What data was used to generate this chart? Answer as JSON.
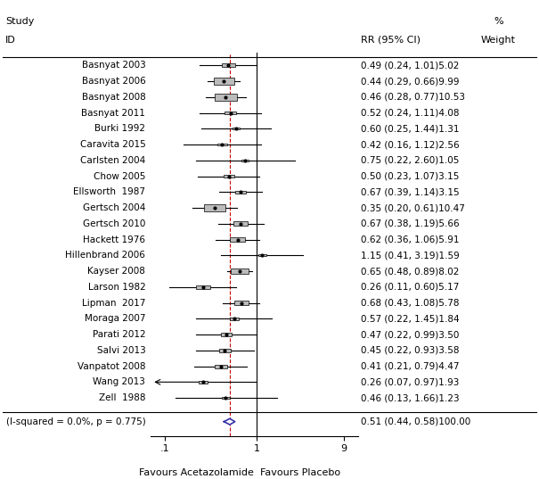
{
  "studies": [
    {
      "id": "Basnyat 2003",
      "rr": 0.49,
      "ci_lo": 0.24,
      "ci_hi": 1.01,
      "weight": 5.02
    },
    {
      "id": "Basnyat 2006",
      "rr": 0.44,
      "ci_lo": 0.29,
      "ci_hi": 0.66,
      "weight": 9.99
    },
    {
      "id": "Basnyat 2008",
      "rr": 0.46,
      "ci_lo": 0.28,
      "ci_hi": 0.77,
      "weight": 10.53
    },
    {
      "id": "Basnyat 2011",
      "rr": 0.52,
      "ci_lo": 0.24,
      "ci_hi": 1.11,
      "weight": 4.08
    },
    {
      "id": "Burki 1992",
      "rr": 0.6,
      "ci_lo": 0.25,
      "ci_hi": 1.44,
      "weight": 1.31
    },
    {
      "id": "Caravita 2015",
      "rr": 0.42,
      "ci_lo": 0.16,
      "ci_hi": 1.12,
      "weight": 2.56
    },
    {
      "id": "Carlsten 2004",
      "rr": 0.75,
      "ci_lo": 0.22,
      "ci_hi": 2.6,
      "weight": 1.05
    },
    {
      "id": "Chow 2005",
      "rr": 0.5,
      "ci_lo": 0.23,
      "ci_hi": 1.07,
      "weight": 3.15
    },
    {
      "id": "Ellsworth  1987",
      "rr": 0.67,
      "ci_lo": 0.39,
      "ci_hi": 1.14,
      "weight": 3.15
    },
    {
      "id": "Gertsch 2004",
      "rr": 0.35,
      "ci_lo": 0.2,
      "ci_hi": 0.61,
      "weight": 10.47
    },
    {
      "id": "Gertsch 2010",
      "rr": 0.67,
      "ci_lo": 0.38,
      "ci_hi": 1.19,
      "weight": 5.66
    },
    {
      "id": "Hackett 1976",
      "rr": 0.62,
      "ci_lo": 0.36,
      "ci_hi": 1.06,
      "weight": 5.91
    },
    {
      "id": "Hillenbrand 2006",
      "rr": 1.15,
      "ci_lo": 0.41,
      "ci_hi": 3.19,
      "weight": 1.59
    },
    {
      "id": "Kayser 2008",
      "rr": 0.65,
      "ci_lo": 0.48,
      "ci_hi": 0.89,
      "weight": 8.02
    },
    {
      "id": "Larson 1982",
      "rr": 0.26,
      "ci_lo": 0.11,
      "ci_hi": 0.6,
      "weight": 5.17
    },
    {
      "id": "Lipman  2017",
      "rr": 0.68,
      "ci_lo": 0.43,
      "ci_hi": 1.08,
      "weight": 5.78
    },
    {
      "id": "Moraga 2007",
      "rr": 0.57,
      "ci_lo": 0.22,
      "ci_hi": 1.45,
      "weight": 1.84
    },
    {
      "id": "Parati 2012",
      "rr": 0.47,
      "ci_lo": 0.22,
      "ci_hi": 0.99,
      "weight": 3.5
    },
    {
      "id": "Salvi 2013",
      "rr": 0.45,
      "ci_lo": 0.22,
      "ci_hi": 0.93,
      "weight": 3.58
    },
    {
      "id": "Vanpatot 2008",
      "rr": 0.41,
      "ci_lo": 0.21,
      "ci_hi": 0.79,
      "weight": 4.47
    },
    {
      "id": "Wang 2013",
      "rr": 0.26,
      "ci_lo": 0.07,
      "ci_hi": 0.97,
      "weight": 1.93,
      "arrow": true
    },
    {
      "id": "Zell  1988",
      "rr": 0.46,
      "ci_lo": 0.13,
      "ci_hi": 1.66,
      "weight": 1.23
    }
  ],
  "overall": {
    "rr": 0.51,
    "ci_lo": 0.44,
    "ci_hi": 0.58,
    "weight": 100.0,
    "label": "Overall  (I-squared = 0.0%, p = 0.775)"
  },
  "x_ticks_val": [
    0.1,
    1,
    9
  ],
  "x_ticks_label": [
    ".1",
    "1",
    "9"
  ],
  "xlabel_left": "Favours Acetazolamide",
  "xlabel_right": "Favours Placebo",
  "col_header_rr": "RR (95% CI)",
  "col_header_pct": "%",
  "col_header_weight": "Weight",
  "col_header_study": "Study",
  "col_header_id": "ID",
  "dashed_line_x": 0.51,
  "ref_line_x": 1.0,
  "diamond_color": "#3333aa",
  "box_color": "#bbbbbb",
  "xlim_lo": 0.07,
  "xlim_hi": 13.0,
  "fontsize_label": 7.5,
  "fontsize_header": 8.0,
  "fontsize_tick": 8.0
}
